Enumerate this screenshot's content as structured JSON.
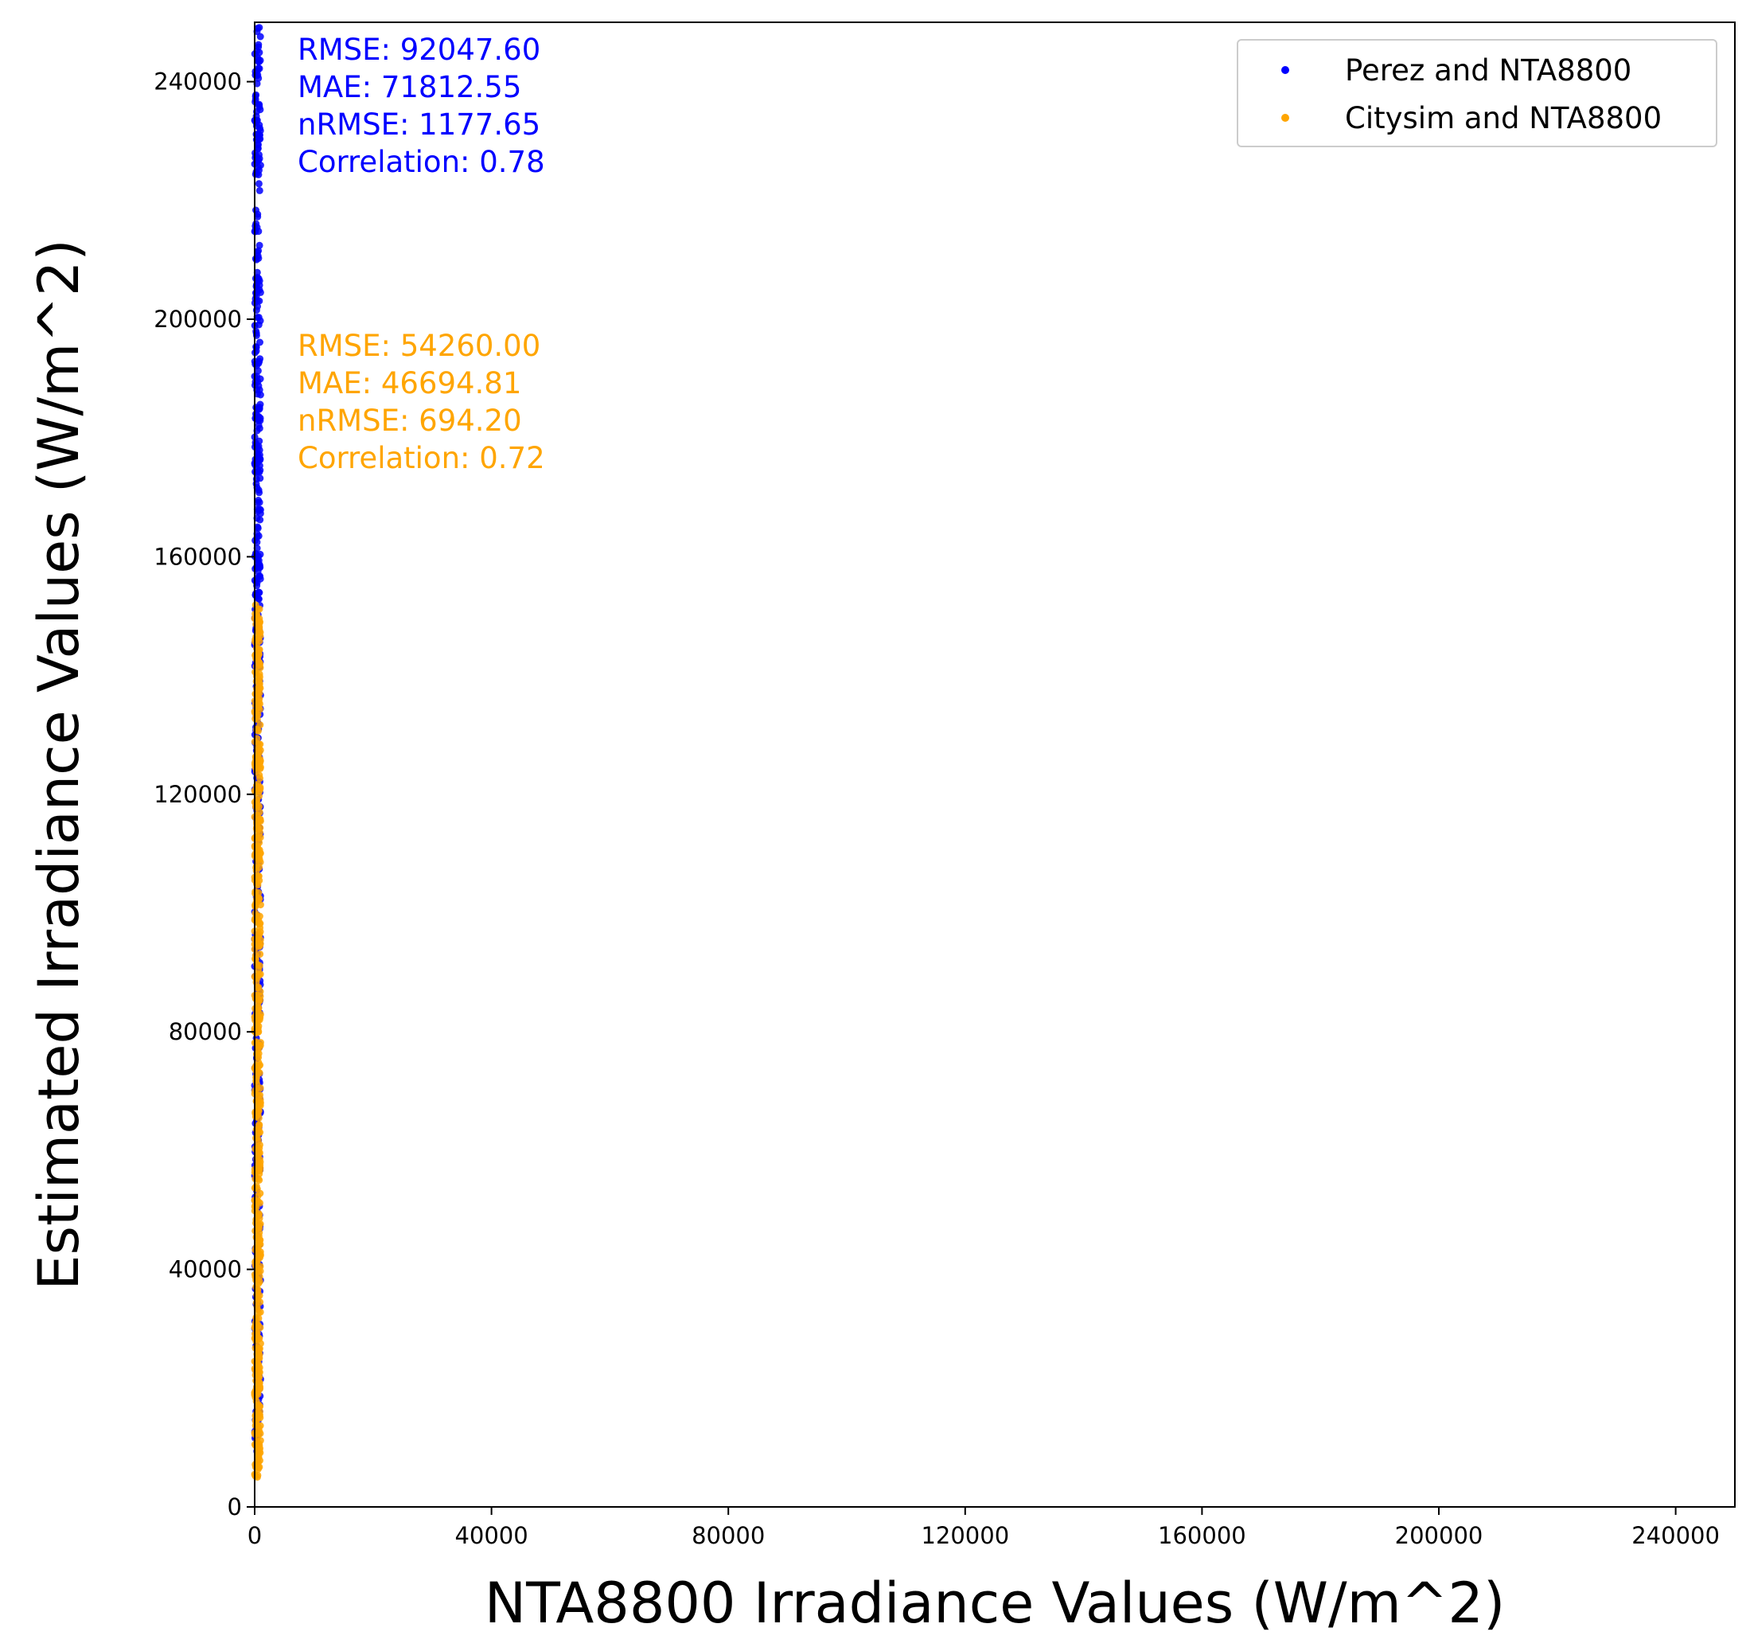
{
  "chart_data": {
    "type": "scatter",
    "xlabel": "NTA8800 Irradiance Values (W/m^2)",
    "ylabel": "Estimated Irradiance Values (W/m^2)",
    "xlim": [
      0,
      250000
    ],
    "ylim": [
      0,
      250000
    ],
    "x_ticks": [
      0,
      40000,
      80000,
      120000,
      160000,
      200000,
      240000
    ],
    "y_ticks": [
      0,
      40000,
      80000,
      120000,
      160000,
      200000,
      240000
    ],
    "grid": false,
    "legend_position": "top-right",
    "series": [
      {
        "name": "Perez and NTA8800",
        "color": "#0000ff",
        "x_range": [
          0,
          1000
        ],
        "y_range": [
          7000,
          250000
        ],
        "stats": [
          "RMSE: 92047.60",
          "MAE: 71812.55",
          "nRMSE: 1177.65",
          "Correlation: 0.78"
        ]
      },
      {
        "name": "Citysim and NTA8800",
        "color": "#ffa500",
        "x_range": [
          0,
          1000
        ],
        "y_range": [
          5000,
          152000
        ],
        "stats": [
          "RMSE: 54260.00",
          "MAE: 46694.81",
          "nRMSE: 694.20",
          "Correlation: 0.72"
        ]
      }
    ]
  }
}
